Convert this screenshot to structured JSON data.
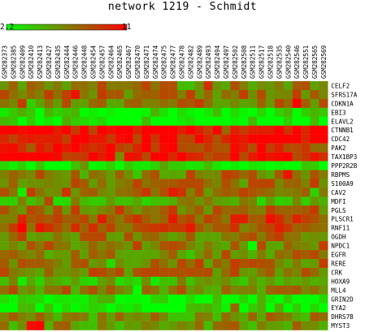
{
  "chart_data": {
    "type": "heatmap",
    "title": "network 1219 - Schmidt",
    "scale": {
      "min_label": "2.2",
      "max_label": "11",
      "low_color": "#00ff00",
      "high_color": "#ff0000"
    },
    "columns": [
      "GSM282373",
      "GSM282385",
      "GSM282409",
      "GSM282410",
      "GSM282413",
      "GSM282427",
      "GSM282435",
      "GSM282444",
      "GSM282446",
      "GSM282448",
      "GSM282454",
      "GSM282457",
      "GSM282464",
      "GSM282465",
      "GSM282467",
      "GSM282470",
      "GSM282471",
      "GSM282474",
      "GSM282475",
      "GSM282477",
      "GSM282478",
      "GSM282482",
      "GSM282489",
      "GSM282493",
      "GSM282494",
      "GSM282497",
      "GSM282502",
      "GSM282508",
      "GSM282511",
      "GSM282517",
      "GSM282518",
      "GSM282535",
      "GSM282540",
      "GSM282546",
      "GSM282551",
      "GSM282565",
      "GSM282569"
    ],
    "rows": [
      "CELF2",
      "SFRS17A",
      "CDKN1A",
      "EBI3",
      "ELAVL2",
      "CTNNB1",
      "CDC42",
      "PAK2",
      "TAX1BP3",
      "PPP2R2B",
      "RBPMS",
      "S100A9",
      "CAV2",
      "MDFI",
      "PGLS",
      "PLSCR1",
      "RNF11",
      "OGDH",
      "NPDC1",
      "EGFR",
      "RERE",
      "CRK",
      "HOXA9",
      "MLL4",
      "GRIN2D",
      "EYA2",
      "DHRS7B",
      "MYST3"
    ],
    "row_levels": [
      0.55,
      0.55,
      0.55,
      0.1,
      0.05,
      0.95,
      0.9,
      0.85,
      0.9,
      0.05,
      0.55,
      0.55,
      0.6,
      0.35,
      0.6,
      0.7,
      0.7,
      0.55,
      0.55,
      0.5,
      0.55,
      0.55,
      0.3,
      0.5,
      0.1,
      0.1,
      0.45,
      0.45
    ],
    "value_range": [
      2.2,
      11
    ]
  }
}
